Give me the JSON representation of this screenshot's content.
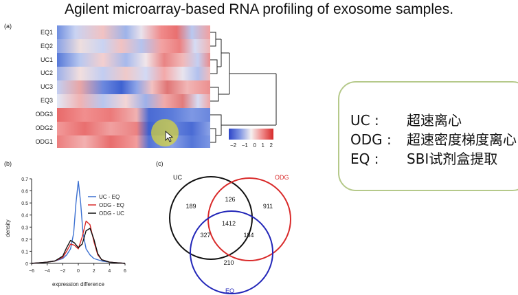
{
  "slide": {
    "title": "Agilent microarray-based RNA profiling of exosome samples."
  },
  "panel_a": {
    "label": "(a)",
    "rows": [
      "EQ1",
      "EQ2",
      "UC1",
      "UC2",
      "UC3",
      "EQ3",
      "ODG3",
      "ODG2",
      "ODG1"
    ],
    "colorbar": {
      "ticks": [
        "−2",
        "−1",
        "0",
        "1",
        "2"
      ],
      "min": -2,
      "max": 2
    }
  },
  "notes": {
    "lines": [
      {
        "key": "UC :",
        "value": "超速离心"
      },
      {
        "key": "ODG :",
        "value": "超速密度梯度离心"
      },
      {
        "key": "EQ :",
        "value": "SBI试剂盒提取"
      }
    ]
  },
  "panel_b": {
    "label": "(b)",
    "legend": [
      "UC - EQ",
      "ODG - EQ",
      "ODG - UC"
    ],
    "colors": [
      "#3a6fd1",
      "#d92a2a",
      "#111111"
    ]
  },
  "panel_c": {
    "label": "(c)",
    "sets": [
      "UC",
      "ODG",
      "EQ"
    ],
    "colors": {
      "UC": "#111111",
      "ODG": "#d92a2a",
      "EQ": "#2226b8"
    },
    "counts": {
      "uc_only": "189",
      "odg_only": "911",
      "eq_only": "210",
      "uc_odg": "126",
      "uc_eq": "327",
      "odg_eq": "184",
      "all": "1412"
    }
  },
  "chart_data": {
    "type": "line",
    "title": "",
    "xlabel": "expression difference",
    "ylabel": "density",
    "xlim": [
      -6,
      6
    ],
    "ylim": [
      0,
      0.7
    ],
    "xticks": [
      "−6",
      "−4",
      "−2",
      "0",
      "2",
      "4",
      "6"
    ],
    "yticks": [
      "0",
      "0.1",
      "0.2",
      "0.3",
      "0.4",
      "0.5",
      "0.6",
      "0.7"
    ],
    "legend_position": "top-right",
    "series": [
      {
        "name": "UC - EQ",
        "color": "#3a6fd1",
        "x": [
          -6,
          -4,
          -3,
          -2,
          -1.5,
          -1,
          -0.6,
          -0.3,
          0,
          0.3,
          0.6,
          1,
          1.5,
          2,
          3,
          4,
          6
        ],
        "y": [
          0,
          0.01,
          0.02,
          0.04,
          0.07,
          0.12,
          0.25,
          0.5,
          0.68,
          0.5,
          0.25,
          0.12,
          0.07,
          0.04,
          0.02,
          0.01,
          0
        ]
      },
      {
        "name": "ODG - EQ",
        "color": "#d92a2a",
        "x": [
          -6,
          -4,
          -3,
          -2,
          -1.5,
          -1,
          -0.5,
          0,
          0.5,
          1,
          1.5,
          2,
          2.5,
          3,
          4,
          6
        ],
        "y": [
          0,
          0.01,
          0.02,
          0.05,
          0.1,
          0.16,
          0.15,
          0.12,
          0.22,
          0.35,
          0.32,
          0.18,
          0.07,
          0.03,
          0.01,
          0
        ]
      },
      {
        "name": "ODG - UC",
        "color": "#111111",
        "x": [
          -6,
          -4,
          -3,
          -2,
          -1.5,
          -1,
          -0.5,
          0,
          0.5,
          1,
          1.5,
          2,
          2.5,
          3,
          4,
          6
        ],
        "y": [
          0,
          0.01,
          0.02,
          0.06,
          0.13,
          0.19,
          0.17,
          0.13,
          0.16,
          0.27,
          0.29,
          0.2,
          0.08,
          0.03,
          0.01,
          0
        ]
      }
    ]
  }
}
